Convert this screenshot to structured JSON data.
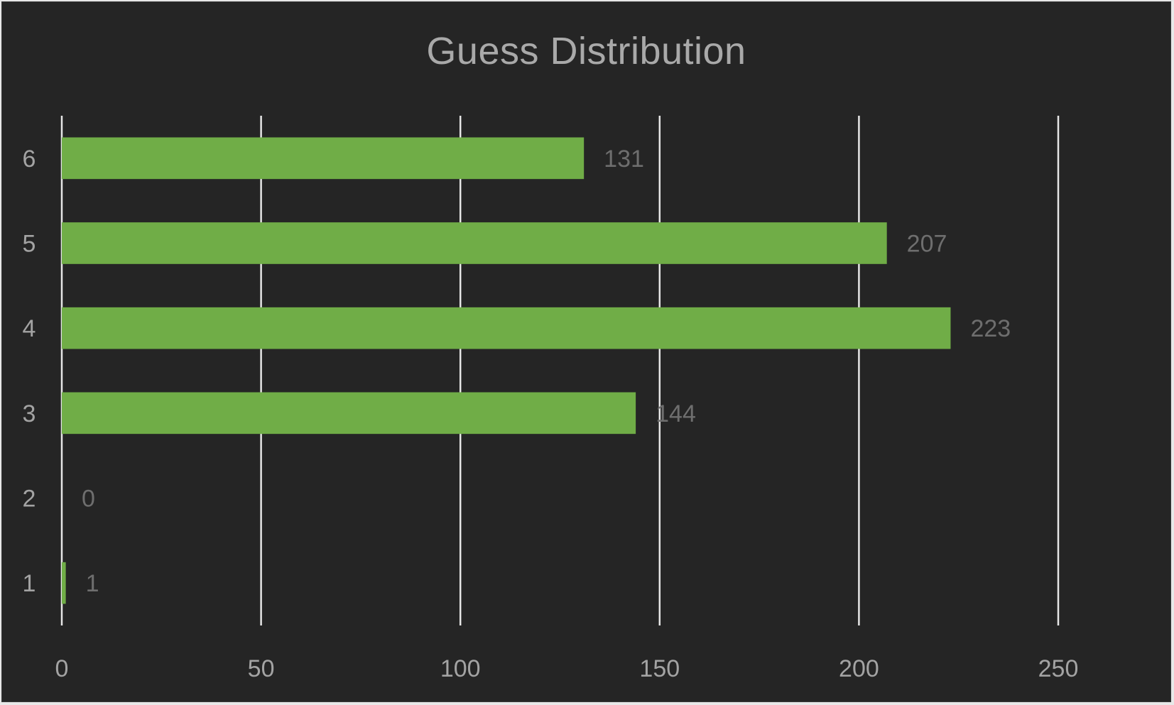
{
  "chart_data": {
    "type": "bar",
    "orientation": "horizontal",
    "title": "Guess Distribution",
    "xlabel": "",
    "ylabel": "",
    "categories": [
      "1",
      "2",
      "3",
      "4",
      "5",
      "6"
    ],
    "values": [
      1,
      0,
      144,
      223,
      207,
      131
    ],
    "data_labels": [
      "1",
      "0",
      "144",
      "223",
      "207",
      "131"
    ],
    "x_ticks": [
      0,
      50,
      100,
      150,
      200,
      250
    ],
    "x_tick_labels": [
      "0",
      "50",
      "100",
      "150",
      "200",
      "250"
    ],
    "xlim": [
      0,
      250
    ],
    "grid": true,
    "legend": "none",
    "colors": {
      "background": "#252525",
      "bar": "#70ad47",
      "grid": "#e6e6e6",
      "tick_text": "#a3a3a3",
      "data_label_text": "#6e6e6e",
      "title_text": "#a9a9a9"
    }
  }
}
